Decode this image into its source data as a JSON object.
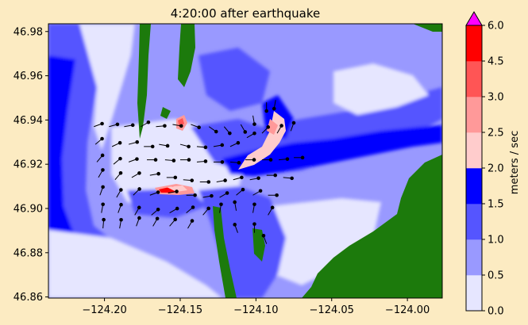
{
  "chart_data": {
    "type": "heatmap",
    "title": "4:20:00 after earthquake",
    "xlabel": "",
    "ylabel": "",
    "xlim": [
      -124.237,
      -123.977
    ],
    "ylim": [
      46.8595,
      46.9835
    ],
    "x_ticks": [
      -124.2,
      -124.15,
      -124.1,
      -124.05,
      -124.0
    ],
    "x_tick_labels": [
      "−124.20",
      "−124.15",
      "−124.10",
      "−124.05",
      "−124.00"
    ],
    "y_ticks": [
      46.86,
      46.88,
      46.9,
      46.92,
      46.94,
      46.96,
      46.98
    ],
    "y_tick_labels": [
      "46.86",
      "46.88",
      "46.90",
      "46.92",
      "46.94",
      "46.96",
      "46.98"
    ],
    "colorbar": {
      "label": "meters / sec",
      "levels": [
        0.0,
        0.5,
        1.0,
        1.5,
        2.0,
        2.5,
        3.0,
        4.5,
        6.0
      ],
      "level_labels": [
        "0.0",
        "0.5",
        "1.0",
        "1.5",
        "2.0",
        "2.5",
        "3.0",
        "4.5",
        "6.0"
      ],
      "bin_colors": [
        "#e6e6ff",
        "#9999ff",
        "#5555ff",
        "#0000ff",
        "#ffcccc",
        "#ff9999",
        "#ff5555",
        "#ff0000"
      ],
      "extend_max_color": "#ff00ff",
      "land_color": "#1c7a0c"
    },
    "velocity_arrows": [
      {
        "x": -124.207,
        "y": 46.937,
        "angle": 20
      },
      {
        "x": -124.197,
        "y": 46.937,
        "angle": 15
      },
      {
        "x": -124.187,
        "y": 46.937,
        "angle": 10
      },
      {
        "x": -124.176,
        "y": 46.937,
        "angle": 30
      },
      {
        "x": -124.166,
        "y": 46.937,
        "angle": 5
      },
      {
        "x": -124.155,
        "y": 46.938,
        "angle": -10
      },
      {
        "x": -124.143,
        "y": 46.938,
        "angle": -20
      },
      {
        "x": -124.131,
        "y": 46.937,
        "angle": -35
      },
      {
        "x": -124.121,
        "y": 46.937,
        "angle": -50
      },
      {
        "x": -124.11,
        "y": 46.938,
        "angle": -60
      },
      {
        "x": -124.102,
        "y": 46.942,
        "angle": -80
      },
      {
        "x": -124.093,
        "y": 46.948,
        "angle": -90
      },
      {
        "x": -124.087,
        "y": 46.949,
        "angle": -100
      },
      {
        "x": -124.206,
        "y": 46.929,
        "angle": 40
      },
      {
        "x": -124.195,
        "y": 46.928,
        "angle": 25
      },
      {
        "x": -124.184,
        "y": 46.929,
        "angle": 15
      },
      {
        "x": -124.174,
        "y": 46.928,
        "angle": 0
      },
      {
        "x": -124.164,
        "y": 46.929,
        "angle": -10
      },
      {
        "x": -124.15,
        "y": 46.929,
        "angle": -15
      },
      {
        "x": -124.139,
        "y": 46.928,
        "angle": -5
      },
      {
        "x": -124.128,
        "y": 46.928,
        "angle": 10
      },
      {
        "x": -124.117,
        "y": 46.928,
        "angle": 25
      },
      {
        "x": -124.106,
        "y": 46.932,
        "angle": 30
      },
      {
        "x": -124.096,
        "y": 46.934,
        "angle": 45
      },
      {
        "x": -124.086,
        "y": 46.934,
        "angle": 60
      },
      {
        "x": -124.077,
        "y": 46.935,
        "angle": 70
      },
      {
        "x": -124.205,
        "y": 46.921,
        "angle": 50
      },
      {
        "x": -124.194,
        "y": 46.92,
        "angle": 40
      },
      {
        "x": -124.184,
        "y": 46.921,
        "angle": 20
      },
      {
        "x": -124.172,
        "y": 46.922,
        "angle": 0
      },
      {
        "x": -124.16,
        "y": 46.922,
        "angle": -5
      },
      {
        "x": -124.15,
        "y": 46.922,
        "angle": 0
      },
      {
        "x": -124.139,
        "y": 46.921,
        "angle": 5
      },
      {
        "x": -124.128,
        "y": 46.921,
        "angle": 0
      },
      {
        "x": -124.117,
        "y": 46.921,
        "angle": -5
      },
      {
        "x": -124.107,
        "y": 46.922,
        "angle": 0
      },
      {
        "x": -124.096,
        "y": 46.922,
        "angle": 0
      },
      {
        "x": -124.085,
        "y": 46.922,
        "angle": 5
      },
      {
        "x": -124.075,
        "y": 46.923,
        "angle": 0
      },
      {
        "x": -124.204,
        "y": 46.914,
        "angle": 60
      },
      {
        "x": -124.193,
        "y": 46.913,
        "angle": 50
      },
      {
        "x": -124.182,
        "y": 46.914,
        "angle": 30
      },
      {
        "x": -124.17,
        "y": 46.915,
        "angle": 10
      },
      {
        "x": -124.159,
        "y": 46.914,
        "angle": 0
      },
      {
        "x": -124.148,
        "y": 46.913,
        "angle": -5
      },
      {
        "x": -124.137,
        "y": 46.912,
        "angle": 0
      },
      {
        "x": -124.126,
        "y": 46.912,
        "angle": 10
      },
      {
        "x": -124.115,
        "y": 46.913,
        "angle": 15
      },
      {
        "x": -124.104,
        "y": 46.913,
        "angle": 10
      },
      {
        "x": -124.093,
        "y": 46.915,
        "angle": 0
      },
      {
        "x": -124.082,
        "y": 46.914,
        "angle": -5
      },
      {
        "x": -124.203,
        "y": 46.906,
        "angle": 70
      },
      {
        "x": -124.192,
        "y": 46.905,
        "angle": 60
      },
      {
        "x": -124.181,
        "y": 46.906,
        "angle": 45
      },
      {
        "x": -124.17,
        "y": 46.906,
        "angle": 20
      },
      {
        "x": -124.158,
        "y": 46.907,
        "angle": 10
      },
      {
        "x": -124.146,
        "y": 46.906,
        "angle": 0
      },
      {
        "x": -124.135,
        "y": 46.905,
        "angle": 10
      },
      {
        "x": -124.124,
        "y": 46.905,
        "angle": 30
      },
      {
        "x": -124.113,
        "y": 46.906,
        "angle": 40
      },
      {
        "x": -124.102,
        "y": 46.906,
        "angle": 30
      },
      {
        "x": -124.092,
        "y": 46.906,
        "angle": 0
      },
      {
        "x": -124.202,
        "y": 46.898,
        "angle": 80
      },
      {
        "x": -124.191,
        "y": 46.898,
        "angle": 70
      },
      {
        "x": -124.18,
        "y": 46.897,
        "angle": 60
      },
      {
        "x": -124.169,
        "y": 46.897,
        "angle": 40
      },
      {
        "x": -124.157,
        "y": 46.898,
        "angle": 30
      },
      {
        "x": -124.146,
        "y": 46.898,
        "angle": 40
      },
      {
        "x": -124.135,
        "y": 46.897,
        "angle": 50
      },
      {
        "x": -124.124,
        "y": 46.898,
        "angle": 80
      },
      {
        "x": -124.113,
        "y": 46.899,
        "angle": 100
      },
      {
        "x": -124.102,
        "y": 46.898,
        "angle": 80
      },
      {
        "x": -124.092,
        "y": 46.897,
        "angle": 60
      },
      {
        "x": -124.201,
        "y": 46.891,
        "angle": 85
      },
      {
        "x": -124.19,
        "y": 46.891,
        "angle": 80
      },
      {
        "x": -124.179,
        "y": 46.892,
        "angle": 70
      },
      {
        "x": -124.168,
        "y": 46.892,
        "angle": 60
      },
      {
        "x": -124.157,
        "y": 46.892,
        "angle": 50
      },
      {
        "x": -124.145,
        "y": 46.891,
        "angle": 60
      },
      {
        "x": -124.112,
        "y": 46.889,
        "angle": 110
      },
      {
        "x": -124.101,
        "y": 46.889,
        "angle": 90
      },
      {
        "x": -124.093,
        "y": 46.884,
        "angle": 110
      }
    ]
  }
}
